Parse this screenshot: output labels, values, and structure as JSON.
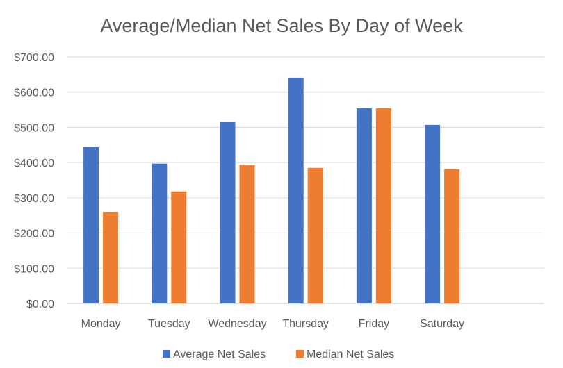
{
  "chart_data": {
    "type": "bar",
    "title": "Average/Median Net Sales By Day of Week",
    "xlabel": "",
    "ylabel": "",
    "categories": [
      "Monday",
      "Tuesday",
      "Wednesday",
      "Thursday",
      "Friday",
      "Saturday"
    ],
    "series": [
      {
        "name": "Average Net Sales",
        "values": [
          444,
          397,
          515,
          641,
          554,
          507
        ],
        "color": "#4472c4"
      },
      {
        "name": "Median Net Sales",
        "values": [
          259,
          318,
          393,
          385,
          554,
          381
        ],
        "color": "#ed7d31"
      }
    ],
    "ylim": [
      0,
      700
    ],
    "yticks": [
      0,
      100,
      200,
      300,
      400,
      500,
      600,
      700
    ],
    "ytick_labels": [
      "$0.00",
      "$100.00",
      "$200.00",
      "$300.00",
      "$400.00",
      "$500.00",
      "$600.00",
      "$700.00"
    ],
    "grid": true,
    "legend_position": "bottom"
  }
}
